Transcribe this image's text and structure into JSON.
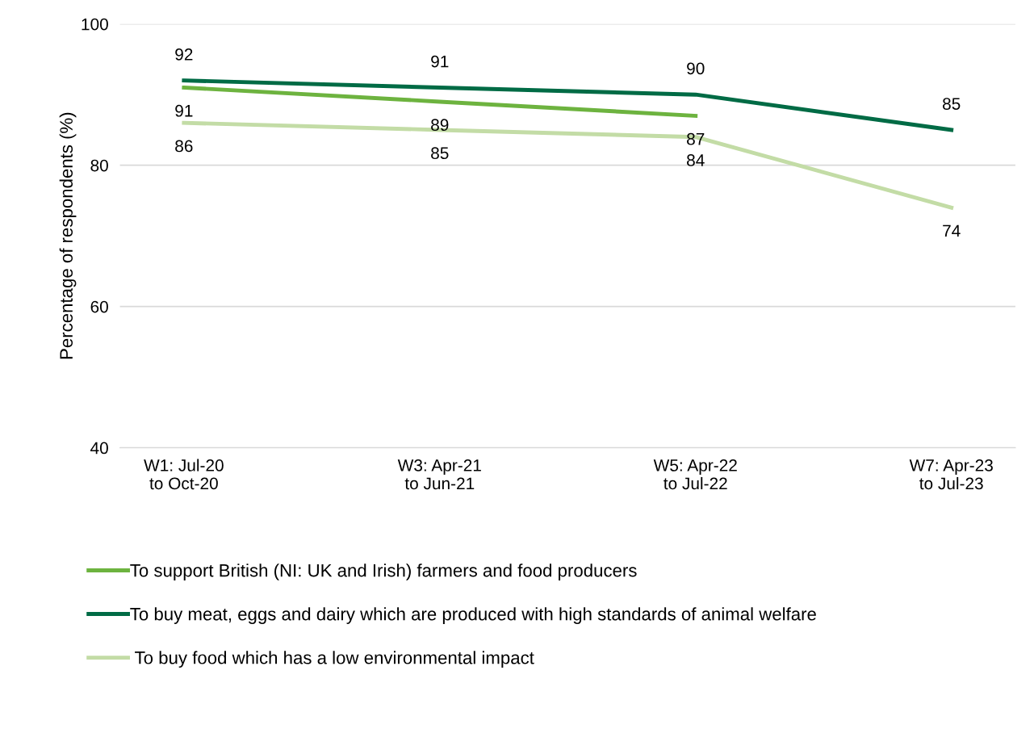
{
  "chart_data": {
    "type": "line",
    "categories": [
      "W1: Jul-20\nto Oct-20",
      "W3: Apr-21\nto Jun-21",
      "W5: Apr-22\nto Jul-22",
      "W7: Apr-23\nto Jul-23"
    ],
    "series": [
      {
        "name": "To support British (NI: UK and Irish) farmers and food producers",
        "color": "#6db33f",
        "values": [
          91,
          89,
          87,
          null
        ]
      },
      {
        "name": "To buy meat, eggs and dairy which are produced with high standards of animal welfare",
        "color": "#006b45",
        "values": [
          92,
          91,
          90,
          85
        ]
      },
      {
        "name": " To buy food which has a low environmental impact",
        "color": "#c3dca6",
        "values": [
          86,
          85,
          84,
          74
        ]
      }
    ],
    "ylabel": "Percentage of respondents (%)",
    "ylim": [
      40,
      100
    ],
    "yticks": [
      40,
      60,
      80,
      100
    ],
    "grid": "y",
    "legend": "bottom",
    "data_labels": true,
    "marker": "none",
    "line_style": "solid"
  }
}
